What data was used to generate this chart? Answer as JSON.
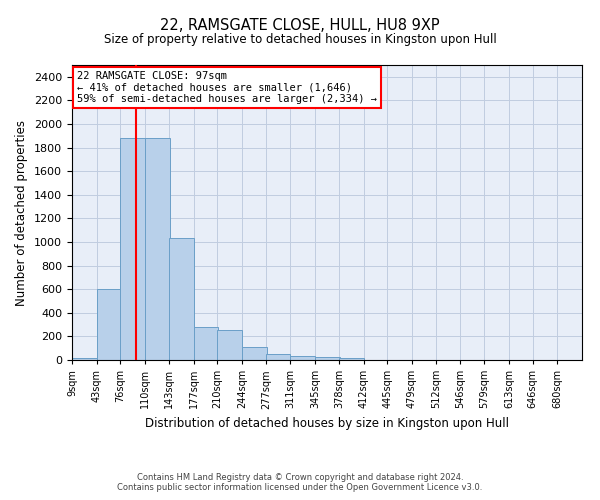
{
  "title1": "22, RAMSGATE CLOSE, HULL, HU8 9XP",
  "title2": "Size of property relative to detached houses in Kingston upon Hull",
  "xlabel": "Distribution of detached houses by size in Kingston upon Hull",
  "ylabel": "Number of detached properties",
  "footer1": "Contains HM Land Registry data © Crown copyright and database right 2024.",
  "footer2": "Contains public sector information licensed under the Open Government Licence v3.0.",
  "annotation_line1": "22 RAMSGATE CLOSE: 97sqm",
  "annotation_line2": "← 41% of detached houses are smaller (1,646)",
  "annotation_line3": "59% of semi-detached houses are larger (2,334) →",
  "property_size": 97,
  "bar_color": "#b8d0ea",
  "bar_edge_color": "#6a9fc8",
  "vline_color": "red",
  "background_color": "#e8eef8",
  "grid_color": "#c0cce0",
  "annotation_box_color": "red",
  "bins": [
    9,
    43,
    76,
    110,
    143,
    177,
    210,
    244,
    277,
    311,
    345,
    378,
    412,
    445,
    479,
    512,
    546,
    579,
    613,
    646,
    680
  ],
  "bin_labels": [
    "9sqm",
    "43sqm",
    "76sqm",
    "110sqm",
    "143sqm",
    "177sqm",
    "210sqm",
    "244sqm",
    "277sqm",
    "311sqm",
    "345sqm",
    "378sqm",
    "412sqm",
    "445sqm",
    "479sqm",
    "512sqm",
    "546sqm",
    "579sqm",
    "613sqm",
    "646sqm",
    "680sqm"
  ],
  "values": [
    20,
    600,
    1880,
    1880,
    1030,
    280,
    255,
    110,
    50,
    35,
    25,
    20,
    0,
    0,
    0,
    0,
    0,
    0,
    0,
    0
  ],
  "ylim": [
    0,
    2500
  ],
  "yticks": [
    0,
    200,
    400,
    600,
    800,
    1000,
    1200,
    1400,
    1600,
    1800,
    2000,
    2200,
    2400
  ]
}
